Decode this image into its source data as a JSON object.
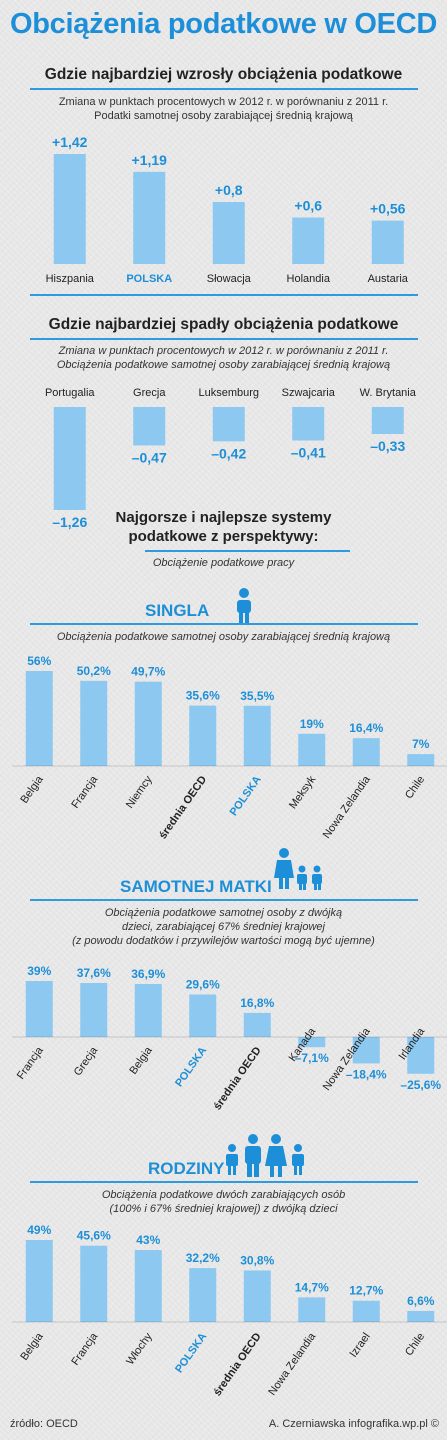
{
  "title": "Obciążenia podatkowe w OECD",
  "colors": {
    "bar": "#8cc8f0",
    "accent": "#1d8fd8",
    "rule": "#2e9be0",
    "text": "#222222"
  },
  "perspective_title": [
    "Najgorsze i najlepsze systemy",
    "podatkowe z perspektywy:"
  ],
  "perspective_subtitle": "Obciążenie podatkowe pracy",
  "source": "źródło: OECD",
  "credit": "A. Czerniawska infografika.wp.pl ©",
  "chart_data": [
    {
      "type": "bar",
      "title": "Gdzie najbardziej wzrosły obciążenia podatkowe",
      "subtitle": [
        "Zmiana w punktach procentowych w 2012 r. w porównaniu z 2011 r.",
        "Podatki samotnej osoby zarabiającej średnią krajową"
      ],
      "categories": [
        "Hiszpania",
        "POLSKA",
        "Słowacja",
        "Holandia",
        "Austaria"
      ],
      "values": [
        1.42,
        1.19,
        0.8,
        0.6,
        0.56
      ],
      "labels": [
        "+1,42",
        "+1,19",
        "+0,8",
        "+0,6",
        "+0,56"
      ],
      "highlight": "POLSKA"
    },
    {
      "type": "bar",
      "title": "Gdzie najbardziej spadły obciążenia podatkowe",
      "subtitle": [
        "Zmiana w punktach procentowych w 2012 r. w porównaniu z 2011 r.",
        "Obciążenia podatkowe samotnej osoby zarabiającej średnią krajową"
      ],
      "categories": [
        "Portugalia",
        "Grecja",
        "Luksemburg",
        "Szwajcaria",
        "W. Brytania"
      ],
      "values": [
        -1.26,
        -0.47,
        -0.42,
        -0.41,
        -0.33
      ],
      "labels": [
        "–1,26",
        "–0,47",
        "–0,42",
        "–0,41",
        "–0,33"
      ]
    },
    {
      "type": "bar",
      "title": "SINGLA",
      "subtitle": [
        "Obciążenia podatkowe samotnej osoby zarabiającej średnią krajową"
      ],
      "categories": [
        "Belgia",
        "Francja",
        "Niemcy",
        "średnia OECD",
        "POLSKA",
        "Meksyk",
        "Nowa Zelandia",
        "Chile"
      ],
      "values": [
        56,
        50.2,
        49.7,
        35.6,
        35.5,
        19,
        16.4,
        7
      ],
      "labels": [
        "56%",
        "50,2%",
        "49,7%",
        "35,6%",
        "35,5%",
        "19%",
        "16,4%",
        "7%"
      ],
      "highlight": "POLSKA",
      "bold": "średnia OECD"
    },
    {
      "type": "bar",
      "title": "SAMOTNEJ MATKI",
      "subtitle": [
        "Obciążenia podatkowe samotnej osoby z dwójką",
        "dzieci, zarabiającej 67% średniej krajowej",
        "(z powodu dodatków i przywilejów wartości mogą być ujemne)"
      ],
      "categories": [
        "Francja",
        "Grecja",
        "Belgia",
        "POLSKA",
        "średnia OECD",
        "Kanada",
        "Nowa Zelandia",
        "Irlandia"
      ],
      "values": [
        39,
        37.6,
        36.9,
        29.6,
        16.8,
        -7.1,
        -18.4,
        -25.6
      ],
      "labels": [
        "39%",
        "37,6%",
        "36,9%",
        "29,6%",
        "16,8%",
        "–7,1%",
        "–18,4%",
        "–25,6%"
      ],
      "highlight": "POLSKA",
      "bold": "średnia OECD"
    },
    {
      "type": "bar",
      "title": "RODZINY",
      "subtitle": [
        "Obciążenia podatkowe dwóch zarabiających osób",
        "(100% i 67% średniej krajowej) z dwójką dzieci"
      ],
      "categories": [
        "Belgia",
        "Francja",
        "Włochy",
        "POLSKA",
        "średnia OECD",
        "Nowa Zelandia",
        "Izrael",
        "Chile"
      ],
      "values": [
        49,
        45.6,
        43,
        32.2,
        30.8,
        14.7,
        12.7,
        6.6
      ],
      "labels": [
        "49%",
        "45,6%",
        "43%",
        "32,2%",
        "30,8%",
        "14,7%",
        "12,7%",
        "6,6%"
      ],
      "highlight": "POLSKA",
      "bold": "średnia OECD"
    }
  ]
}
